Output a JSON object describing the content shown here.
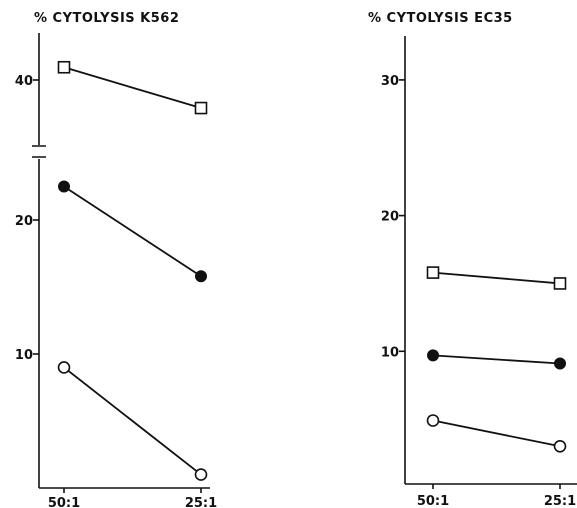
{
  "chart_data": [
    {
      "type": "line",
      "title": "% CYTOLYSIS K562",
      "categories": [
        "50:1",
        "25:1"
      ],
      "axis_break": [
        25,
        37
      ],
      "yticks": [
        {
          "value": 10,
          "label": "10"
        },
        {
          "value": 20,
          "label": "20"
        },
        {
          "value": 40,
          "label": "40"
        }
      ],
      "ylim": [
        0,
        43
      ],
      "grid": false,
      "series": [
        {
          "marker": "open-square",
          "values": [
            42.5,
            34.5
          ]
        },
        {
          "marker": "filled-circle",
          "values": [
            22.5,
            15.8
          ]
        },
        {
          "marker": "open-circle",
          "values": [
            9.0,
            1.0
          ]
        }
      ]
    },
    {
      "type": "line",
      "title": "% CYTOLYSIS EC35",
      "categories": [
        "50:1",
        "25:1"
      ],
      "yticks": [
        {
          "value": 10,
          "label": "10"
        },
        {
          "value": 20,
          "label": "20"
        },
        {
          "value": 30,
          "label": "30"
        }
      ],
      "ylim": [
        0,
        33
      ],
      "grid": false,
      "series": [
        {
          "marker": "open-square",
          "values": [
            15.8,
            15.0
          ]
        },
        {
          "marker": "filled-circle",
          "values": [
            9.7,
            9.1
          ]
        },
        {
          "marker": "open-circle",
          "values": [
            4.9,
            3.0
          ]
        }
      ]
    }
  ]
}
